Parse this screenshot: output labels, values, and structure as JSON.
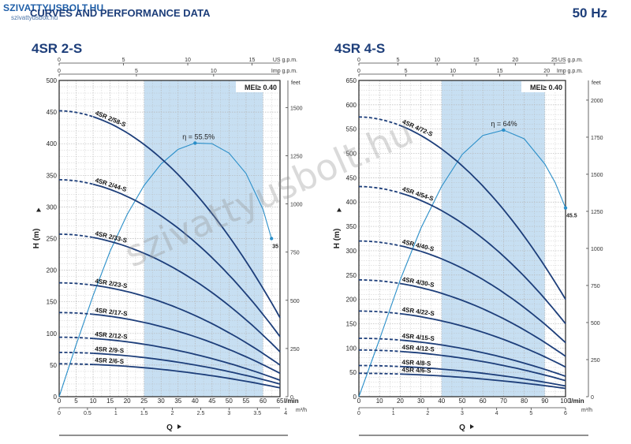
{
  "header": {
    "logo": "SZIVATTYUSBOLT.HU",
    "logo_sub": "szivattyusbolt.hu",
    "heading": "CURVES AND PERFORMANCE DATA",
    "frequency": "50 Hz",
    "watermark": "szivattyusbolt.hu"
  },
  "colors": {
    "curve": "#1d3e7a",
    "efficiency": "#2b8fc9",
    "band": "#c7dff2",
    "grid": "#b5b5b5",
    "text": "#1d3e7a"
  },
  "chart_data": [
    {
      "type": "line",
      "title": "4SR 2-S",
      "x_unit_top_us": "US g.p.m.",
      "x_unit_top_imp": "Imp g.p.m.",
      "x_unit_lmin": "l/min",
      "x_unit_m3h": "m³/h",
      "xlabel": "Q",
      "ylabel": "H (m)",
      "y_unit_right": "feet",
      "xlim": [
        0,
        65
      ],
      "ylim": [
        0,
        500
      ],
      "x_ticks_lmin": [
        0,
        5,
        10,
        15,
        20,
        25,
        30,
        35,
        40,
        45,
        50,
        55,
        60,
        65
      ],
      "y_ticks_m": [
        0,
        50,
        100,
        150,
        200,
        250,
        300,
        350,
        400,
        450,
        500
      ],
      "y_ticks_feet": [
        0,
        250,
        500,
        750,
        1000,
        1250,
        1500
      ],
      "ticks_us": [
        0,
        5,
        10,
        15
      ],
      "ticks_imp": [
        0,
        5,
        10
      ],
      "ticks_m3h": [
        0,
        0.5,
        1,
        1.5,
        2,
        2.5,
        3,
        3.5,
        4
      ],
      "recommended_range": [
        25,
        60
      ],
      "mei": "MEI≥ 0.40",
      "efficiency": {
        "label": "η = 55.5%",
        "end_label": "35",
        "x": [
          0,
          5,
          10,
          15,
          20,
          25,
          30,
          35,
          40,
          45,
          50,
          55,
          60,
          62.5
        ],
        "y": [
          0,
          82,
          160,
          230,
          288,
          334,
          368,
          391,
          401,
          400,
          385,
          353,
          296,
          250
        ]
      },
      "series": [
        {
          "name": "4SR 2/58-S",
          "shutoff": 452,
          "end": 125,
          "label_at": 10
        },
        {
          "name": "4SR 2/44-S",
          "shutoff": 343,
          "end": 95,
          "label_at": 10
        },
        {
          "name": "4SR 2/33-S",
          "shutoff": 257,
          "end": 71,
          "label_at": 10
        },
        {
          "name": "4SR 2/23-S",
          "shutoff": 180,
          "end": 50,
          "label_at": 10
        },
        {
          "name": "4SR 2/17-S",
          "shutoff": 133,
          "end": 37,
          "label_at": 10
        },
        {
          "name": "4SR 2/12-S",
          "shutoff": 94,
          "end": 26,
          "label_at": 10
        },
        {
          "name": "4SR 2/9-S",
          "shutoff": 70,
          "end": 20,
          "label_at": 10
        },
        {
          "name": "4SR 2/6-S",
          "shutoff": 52,
          "end": 14,
          "label_at": 10
        }
      ]
    },
    {
      "type": "line",
      "title": "4SR 4-S",
      "x_unit_top_us": "US g.p.m.",
      "x_unit_top_imp": "Imp g.p.m.",
      "x_unit_lmin": "l/min",
      "x_unit_m3h": "m³/h",
      "xlabel": "Q",
      "ylabel": "H (m)",
      "y_unit_right": "feet",
      "xlim": [
        0,
        100
      ],
      "ylim": [
        0,
        650
      ],
      "x_ticks_lmin": [
        0,
        10,
        20,
        30,
        40,
        50,
        60,
        70,
        80,
        90,
        100
      ],
      "y_ticks_m": [
        0,
        50,
        100,
        150,
        200,
        250,
        300,
        350,
        400,
        450,
        500,
        550,
        600,
        650
      ],
      "y_ticks_feet": [
        0,
        250,
        500,
        750,
        1000,
        1250,
        1500,
        1750,
        2000
      ],
      "ticks_us": [
        0,
        5,
        10,
        15,
        20,
        25
      ],
      "ticks_imp": [
        0,
        5,
        10,
        15,
        20
      ],
      "ticks_m3h": [
        0,
        1,
        2,
        3,
        4,
        5,
        6
      ],
      "recommended_range": [
        40,
        90
      ],
      "mei": "MEI≥ 0.40",
      "efficiency": {
        "label": "η = 64%",
        "end_label": "45.5",
        "x": [
          0,
          10,
          20,
          30,
          40,
          50,
          60,
          70,
          80,
          90,
          95,
          100
        ],
        "y": [
          0,
          118,
          240,
          346,
          432,
          498,
          537,
          548,
          530,
          478,
          440,
          388
        ]
      },
      "series": [
        {
          "name": "4SR 4/72-S",
          "shutoff": 575,
          "end": 200,
          "label_at": 20
        },
        {
          "name": "4SR 4/54-S",
          "shutoff": 432,
          "end": 150,
          "label_at": 20
        },
        {
          "name": "4SR 4/40-S",
          "shutoff": 320,
          "end": 111,
          "label_at": 20
        },
        {
          "name": "4SR 4/30-S",
          "shutoff": 240,
          "end": 83,
          "label_at": 20
        },
        {
          "name": "4SR 4/22-S",
          "shutoff": 176,
          "end": 61,
          "label_at": 20
        },
        {
          "name": "4SR 4/15-S",
          "shutoff": 120,
          "end": 42,
          "label_at": 20
        },
        {
          "name": "4SR 4/12-S",
          "shutoff": 96,
          "end": 33,
          "label_at": 20
        },
        {
          "name": "4SR 4/8-S",
          "shutoff": 64,
          "end": 22,
          "label_at": 20
        },
        {
          "name": "4SR 4/6-S",
          "shutoff": 48,
          "end": 17,
          "label_at": 20
        }
      ]
    }
  ]
}
